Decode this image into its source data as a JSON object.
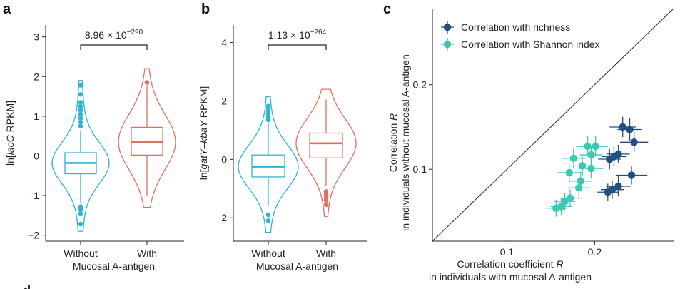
{
  "colors": {
    "without": "#2fb3d6",
    "with": "#e0705e",
    "richness": "#22507e",
    "shannon": "#3ec8b4",
    "axis": "#222222"
  },
  "chart_data": [
    {
      "panel": "a",
      "type": "violin",
      "categories": [
        "Without",
        "With"
      ],
      "xlabel": "Mucosal A-antigen",
      "ylabel": "ln[lacC RPKM]",
      "ylabel_parts": {
        "prefix": "ln[",
        "italic": "lacC",
        "suffix": " RPKM]"
      },
      "yticks": [
        -2,
        -1,
        0,
        1,
        2,
        3
      ],
      "ylim": [
        -2.15,
        3.3
      ],
      "pvalue": {
        "mantissa": "8.96 × 10",
        "exponent": "−290"
      },
      "groups": [
        {
          "name": "Without",
          "min": -1.9,
          "q1": -0.45,
          "median": -0.18,
          "q3": 0.08,
          "max": 1.9,
          "whisker_low": -1.2,
          "whisker_high": 0.65,
          "outliers": [
            -1.72,
            -1.45,
            -1.35,
            -1.28,
            0.75,
            0.85,
            0.95,
            1.05,
            1.15,
            1.25,
            1.35,
            1.55,
            1.78
          ]
        },
        {
          "name": "With",
          "min": -1.3,
          "q1": 0.02,
          "median": 0.35,
          "q3": 0.72,
          "max": 2.2,
          "whisker_low": -1.0,
          "whisker_high": 1.78,
          "outliers": [
            1.85
          ]
        }
      ]
    },
    {
      "panel": "b",
      "type": "violin",
      "categories": [
        "Without",
        "With"
      ],
      "xlabel": "Mucosal A-antigen",
      "ylabel": "ln[gatY–kbaY RPKM]",
      "ylabel_parts": {
        "prefix": "ln[",
        "italic": "gatY–kbaY",
        "suffix": " RPKM]"
      },
      "yticks": [
        -2,
        0,
        2,
        4
      ],
      "ylim": [
        -2.8,
        4.6
      ],
      "pvalue": {
        "mantissa": "1.13 × 10",
        "exponent": "−264"
      },
      "groups": [
        {
          "name": "Without",
          "min": -2.5,
          "q1": -0.6,
          "median": -0.25,
          "q3": 0.15,
          "max": 2.15,
          "whisker_low": -1.6,
          "whisker_high": 1.25,
          "outliers": [
            -2.1,
            -1.9,
            1.35,
            1.45,
            1.55,
            1.65,
            1.75,
            1.82
          ]
        },
        {
          "name": "With",
          "min": -1.95,
          "q1": 0.05,
          "median": 0.55,
          "q3": 0.9,
          "max": 2.4,
          "whisker_low": -0.9,
          "whisker_high": 2.05,
          "outliers": [
            -1.55,
            -1.4,
            -1.3,
            -1.2,
            -1.1
          ]
        }
      ]
    },
    {
      "panel": "c",
      "type": "scatter",
      "xlabel": [
        "Correlation coefficient R",
        "in individuals with mucosal A-antigen"
      ],
      "ylabel": [
        "Correlation R",
        "in individuals without mucosal A-antigen"
      ],
      "xticks": [
        0.1,
        0.2
      ],
      "yticks": [
        0.1,
        0.2
      ],
      "xlim": [
        0.015,
        0.29
      ],
      "ylim": [
        0.015,
        0.29
      ],
      "identity_line": true,
      "legend": [
        "Correlation with richness",
        "Correlation with Shannon index"
      ],
      "series": [
        {
          "name": "Correlation with richness",
          "points": [
            {
              "x": 0.232,
              "y": 0.15,
              "ex": 0.015,
              "ey": 0.012
            },
            {
              "x": 0.24,
              "y": 0.147,
              "ex": 0.014,
              "ey": 0.013
            },
            {
              "x": 0.245,
              "y": 0.132,
              "ex": 0.016,
              "ey": 0.012
            },
            {
              "x": 0.227,
              "y": 0.118,
              "ex": 0.013,
              "ey": 0.011
            },
            {
              "x": 0.222,
              "y": 0.115,
              "ex": 0.014,
              "ey": 0.012
            },
            {
              "x": 0.217,
              "y": 0.112,
              "ex": 0.013,
              "ey": 0.012
            },
            {
              "x": 0.242,
              "y": 0.093,
              "ex": 0.018,
              "ey": 0.011
            },
            {
              "x": 0.227,
              "y": 0.08,
              "ex": 0.014,
              "ey": 0.012
            },
            {
              "x": 0.22,
              "y": 0.076,
              "ex": 0.013,
              "ey": 0.011
            },
            {
              "x": 0.215,
              "y": 0.073,
              "ex": 0.012,
              "ey": 0.01
            }
          ]
        },
        {
          "name": "Correlation with Shannon index",
          "points": [
            {
              "x": 0.201,
              "y": 0.127,
              "ex": 0.014,
              "ey": 0.012
            },
            {
              "x": 0.192,
              "y": 0.127,
              "ex": 0.013,
              "ey": 0.012
            },
            {
              "x": 0.196,
              "y": 0.117,
              "ex": 0.013,
              "ey": 0.011
            },
            {
              "x": 0.176,
              "y": 0.113,
              "ex": 0.014,
              "ey": 0.012
            },
            {
              "x": 0.186,
              "y": 0.104,
              "ex": 0.013,
              "ey": 0.011
            },
            {
              "x": 0.196,
              "y": 0.101,
              "ex": 0.014,
              "ey": 0.012
            },
            {
              "x": 0.171,
              "y": 0.096,
              "ex": 0.014,
              "ey": 0.011
            },
            {
              "x": 0.184,
              "y": 0.086,
              "ex": 0.013,
              "ey": 0.011
            },
            {
              "x": 0.182,
              "y": 0.078,
              "ex": 0.013,
              "ey": 0.011
            },
            {
              "x": 0.172,
              "y": 0.066,
              "ex": 0.013,
              "ey": 0.01
            },
            {
              "x": 0.166,
              "y": 0.062,
              "ex": 0.012,
              "ey": 0.01
            },
            {
              "x": 0.162,
              "y": 0.056,
              "ex": 0.012,
              "ey": 0.01
            },
            {
              "x": 0.156,
              "y": 0.054,
              "ex": 0.012,
              "ey": 0.01
            }
          ]
        }
      ]
    }
  ]
}
